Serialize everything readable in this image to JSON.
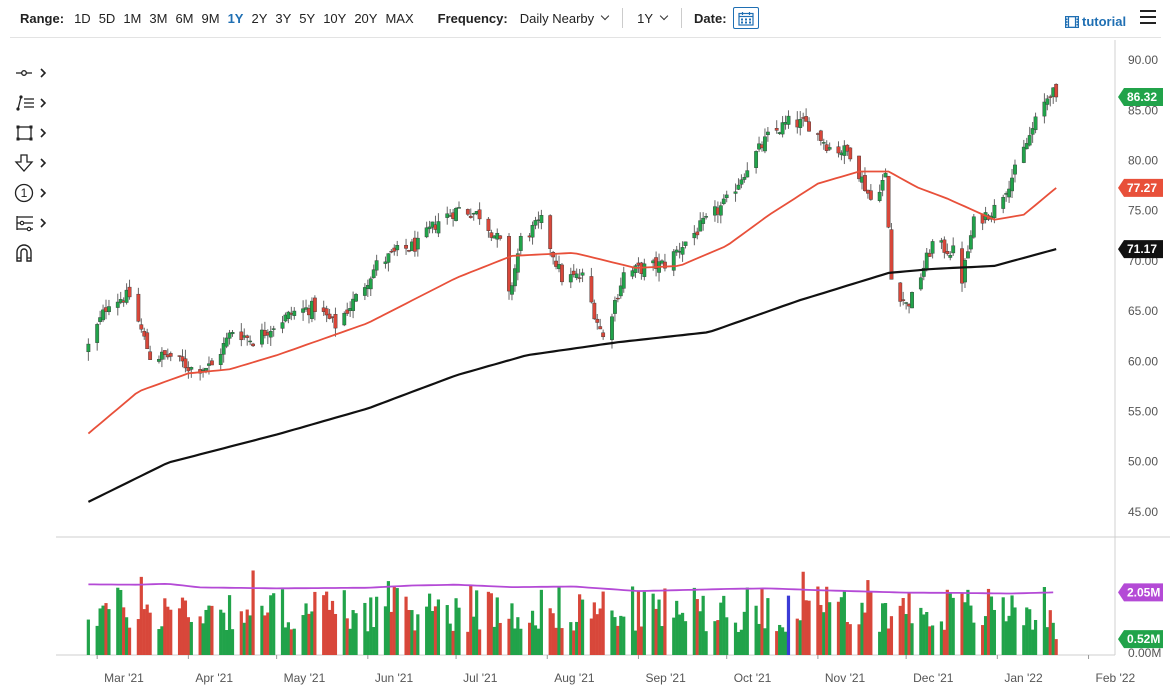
{
  "toolbar": {
    "range_label": "Range:",
    "ranges": [
      "1D",
      "5D",
      "1M",
      "3M",
      "6M",
      "9M",
      "1Y",
      "2Y",
      "3Y",
      "5Y",
      "10Y",
      "20Y",
      "MAX"
    ],
    "active_range": "1Y",
    "frequency_label": "Frequency:",
    "frequency_value": "Daily Nearby",
    "period_value": "1Y",
    "date_label": "Date:",
    "tutorial_label": "tutorial"
  },
  "tools": [
    "crosshair-icon",
    "line-list-icon",
    "rectangle-icon",
    "arrow-down-icon",
    "count-circle-icon",
    "fibonacci-icon",
    "magnet-icon"
  ],
  "tool_badge": "1",
  "colors": {
    "up": "#21a34a",
    "down": "#d8473a",
    "ma_short": "#e8503a",
    "ma_long": "#111111",
    "volume_avg": "#b44ad6",
    "highlight": "#3b3bd6"
  },
  "chart_data": [
    {
      "type": "candlestick",
      "title": "",
      "x_ticks": [
        "Mar '21",
        "Apr '21",
        "May '21",
        "Jun '21",
        "Jul '21",
        "Aug '21",
        "Sep '21",
        "Oct '21",
        "Nov '21",
        "Dec '21",
        "Jan '22",
        "Feb '22"
      ],
      "y_ticks": [
        "90.00",
        "85.00",
        "80.00",
        "75.00",
        "70.00",
        "65.00",
        "60.00",
        "55.00",
        "50.00",
        "45.00"
      ],
      "ylim": [
        42.5,
        92
      ],
      "anchors": [
        {
          "x": "2021-02-26",
          "close": 61.5
        },
        {
          "x": "2021-03-05",
          "close": 66.0
        },
        {
          "x": "2021-03-12",
          "close": 66.5
        },
        {
          "x": "2021-03-19",
          "close": 60.5
        },
        {
          "x": "2021-03-26",
          "close": 60.5
        },
        {
          "x": "2021-04-02",
          "close": 59.3
        },
        {
          "x": "2021-04-09",
          "close": 59.5
        },
        {
          "x": "2021-04-16",
          "close": 63.1
        },
        {
          "x": "2021-04-23",
          "close": 62.1
        },
        {
          "x": "2021-04-30",
          "close": 63.6
        },
        {
          "x": "2021-05-07",
          "close": 64.9
        },
        {
          "x": "2021-05-14",
          "close": 65.4
        },
        {
          "x": "2021-05-21",
          "close": 63.6
        },
        {
          "x": "2021-05-28",
          "close": 66.3
        },
        {
          "x": "2021-06-04",
          "close": 69.6
        },
        {
          "x": "2021-06-11",
          "close": 70.9
        },
        {
          "x": "2021-06-18",
          "close": 71.6
        },
        {
          "x": "2021-06-25",
          "close": 74.0
        },
        {
          "x": "2021-07-02",
          "close": 75.2
        },
        {
          "x": "2021-07-09",
          "close": 74.6
        },
        {
          "x": "2021-07-16",
          "close": 71.8
        },
        {
          "x": "2021-07-19",
          "close": 66.4
        },
        {
          "x": "2021-07-23",
          "close": 72.1
        },
        {
          "x": "2021-07-30",
          "close": 73.9
        },
        {
          "x": "2021-08-06",
          "close": 68.3
        },
        {
          "x": "2021-08-13",
          "close": 68.4
        },
        {
          "x": "2021-08-20",
          "close": 62.3
        },
        {
          "x": "2021-08-27",
          "close": 68.7
        },
        {
          "x": "2021-09-03",
          "close": 69.3
        },
        {
          "x": "2021-09-10",
          "close": 69.7
        },
        {
          "x": "2021-09-17",
          "close": 71.9
        },
        {
          "x": "2021-09-24",
          "close": 73.9
        },
        {
          "x": "2021-10-01",
          "close": 75.9
        },
        {
          "x": "2021-10-08",
          "close": 79.4
        },
        {
          "x": "2021-10-15",
          "close": 82.3
        },
        {
          "x": "2021-10-22",
          "close": 83.8
        },
        {
          "x": "2021-10-29",
          "close": 83.6
        },
        {
          "x": "2021-11-05",
          "close": 81.3
        },
        {
          "x": "2021-11-12",
          "close": 80.8
        },
        {
          "x": "2021-11-19",
          "close": 76.1
        },
        {
          "x": "2021-11-24",
          "close": 78.4
        },
        {
          "x": "2021-11-26",
          "close": 68.2
        },
        {
          "x": "2021-12-01",
          "close": 65.6
        },
        {
          "x": "2021-12-03",
          "close": 66.3
        },
        {
          "x": "2021-12-10",
          "close": 71.7
        },
        {
          "x": "2021-12-17",
          "close": 70.9
        },
        {
          "x": "2021-12-20",
          "close": 68.2
        },
        {
          "x": "2021-12-24",
          "close": 73.8
        },
        {
          "x": "2021-12-31",
          "close": 75.2
        },
        {
          "x": "2022-01-07",
          "close": 78.9
        },
        {
          "x": "2022-01-14",
          "close": 83.8
        },
        {
          "x": "2022-01-19",
          "close": 86.9
        },
        {
          "x": "2022-01-21",
          "close": 86.32
        }
      ],
      "series": [
        {
          "name": "",
          "color": "#e8503a",
          "points": [
            {
              "x": "2021-02-26",
              "y": 52.8
            },
            {
              "x": "2021-03-15",
              "y": 57.0
            },
            {
              "x": "2021-04-01",
              "y": 58.8
            },
            {
              "x": "2021-04-15",
              "y": 59.2
            },
            {
              "x": "2021-05-01",
              "y": 60.6
            },
            {
              "x": "2021-06-01",
              "y": 63.8
            },
            {
              "x": "2021-07-01",
              "y": 68.3
            },
            {
              "x": "2021-07-20",
              "y": 70.5
            },
            {
              "x": "2021-08-10",
              "y": 70.8
            },
            {
              "x": "2021-08-31",
              "y": 69.3
            },
            {
              "x": "2021-09-15",
              "y": 69.5
            },
            {
              "x": "2021-10-01",
              "y": 71.5
            },
            {
              "x": "2021-10-15",
              "y": 74.5
            },
            {
              "x": "2021-11-01",
              "y": 77.7
            },
            {
              "x": "2021-11-15",
              "y": 78.9
            },
            {
              "x": "2021-11-25",
              "y": 78.9
            },
            {
              "x": "2021-12-05",
              "y": 77.3
            },
            {
              "x": "2021-12-15",
              "y": 76.2
            },
            {
              "x": "2021-12-31",
              "y": 74.1
            },
            {
              "x": "2022-01-10",
              "y": 74.6
            },
            {
              "x": "2022-01-21",
              "y": 77.27
            }
          ]
        },
        {
          "name": "",
          "color": "#111111",
          "points": [
            {
              "x": "2021-02-26",
              "y": 46.0
            },
            {
              "x": "2021-03-25",
              "y": 49.9
            },
            {
              "x": "2021-05-01",
              "y": 52.7
            },
            {
              "x": "2021-06-01",
              "y": 55.3
            },
            {
              "x": "2021-07-01",
              "y": 58.6
            },
            {
              "x": "2021-07-25",
              "y": 60.6
            },
            {
              "x": "2021-08-25",
              "y": 61.9
            },
            {
              "x": "2021-09-25",
              "y": 62.9
            },
            {
              "x": "2021-10-25",
              "y": 66.0
            },
            {
              "x": "2021-11-25",
              "y": 68.8
            },
            {
              "x": "2021-12-10",
              "y": 69.2
            },
            {
              "x": "2021-12-31",
              "y": 69.5
            },
            {
              "x": "2022-01-21",
              "y": 71.17
            }
          ]
        }
      ],
      "last_labels": [
        {
          "value": "86.32",
          "color": "#21a34a",
          "y": 86.32
        },
        {
          "value": "77.27",
          "color": "#e8503a",
          "y": 77.27
        },
        {
          "value": "71.17",
          "color": "#111111",
          "y": 71.17
        }
      ]
    },
    {
      "type": "bar",
      "title": "",
      "y_ticks": [
        "0.00M"
      ],
      "ylim": [
        0,
        3.5
      ],
      "last_volume": 0.52,
      "volume_average": [
        {
          "x": "2021-02-26",
          "y": 2.31
        },
        {
          "x": "2021-03-15",
          "y": 2.3
        },
        {
          "x": "2021-03-25",
          "y": 2.33
        },
        {
          "x": "2021-04-05",
          "y": 2.21
        },
        {
          "x": "2021-05-01",
          "y": 2.18
        },
        {
          "x": "2021-06-01",
          "y": 2.2
        },
        {
          "x": "2021-06-15",
          "y": 2.27
        },
        {
          "x": "2021-07-01",
          "y": 2.3
        },
        {
          "x": "2021-07-20",
          "y": 2.22
        },
        {
          "x": "2021-08-10",
          "y": 2.24
        },
        {
          "x": "2021-09-01",
          "y": 2.09
        },
        {
          "x": "2021-10-01",
          "y": 2.16
        },
        {
          "x": "2021-10-15",
          "y": 2.18
        },
        {
          "x": "2021-11-01",
          "y": 2.12
        },
        {
          "x": "2021-12-01",
          "y": 2.04
        },
        {
          "x": "2021-12-20",
          "y": 2.03
        },
        {
          "x": "2022-01-05",
          "y": 2.01
        },
        {
          "x": "2022-01-21",
          "y": 2.05
        }
      ],
      "last_labels": [
        {
          "value": "2.05M",
          "color": "#b44ad6",
          "y": 2.05
        },
        {
          "value": "0.52M",
          "color": "#21a34a",
          "y": 0.52
        }
      ]
    }
  ]
}
